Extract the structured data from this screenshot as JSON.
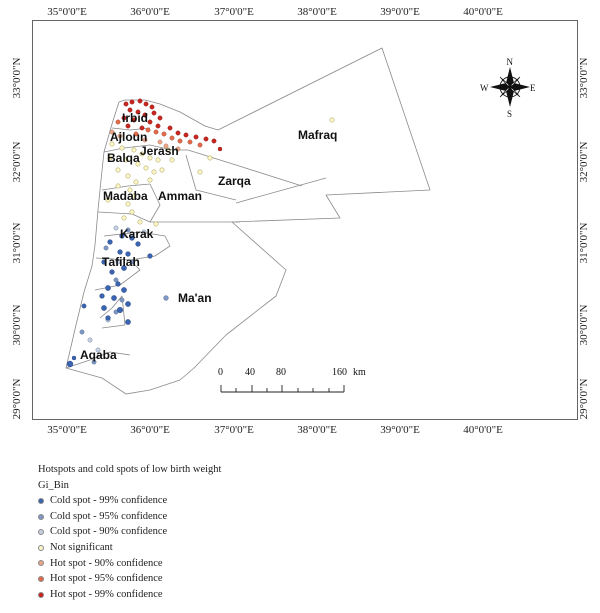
{
  "lon_ticks": [
    "35°0'0\"E",
    "36°0'0\"E",
    "37°0'0\"E",
    "38°0'0\"E",
    "39°0'0\"E",
    "40°0'0\"E"
  ],
  "lat_ticks": [
    "33°0'0\"N",
    "32°0'0\"N",
    "31°0'0\"N",
    "30°0'0\"N",
    "29°0'0\"N"
  ],
  "regions": [
    "Irbid",
    "Ajloun",
    "Jerash",
    "Balqa",
    "Mafraq",
    "Zarqa",
    "Madaba",
    "Amman",
    "Karak",
    "Tafilah",
    "Ma'an",
    "Aqaba"
  ],
  "compass": {
    "n": "N",
    "s": "S",
    "e": "E",
    "w": "W"
  },
  "scale_bar": {
    "ticks": [
      "0",
      "40",
      "80",
      "160"
    ],
    "unit": "km"
  },
  "legend": {
    "title": "Hotspots and cold spots of low birth weight",
    "field": "Gi_Bin",
    "items": [
      {
        "label": "Cold spot - 99% confidence",
        "color": "#3a64b0"
      },
      {
        "label": "Cold spot - 95% confidence",
        "color": "#7f97c4"
      },
      {
        "label": "Cold spot - 90% confidence",
        "color": "#c4cfe0"
      },
      {
        "label": "Not significant",
        "color": "#fbf6c8"
      },
      {
        "label": "Hot spot - 90% confidence",
        "color": "#e9a48a"
      },
      {
        "label": "Hot spot - 95% confidence",
        "color": "#e26a4a"
      },
      {
        "label": "Hot spot - 99% confidence",
        "color": "#c8251f"
      }
    ]
  }
}
